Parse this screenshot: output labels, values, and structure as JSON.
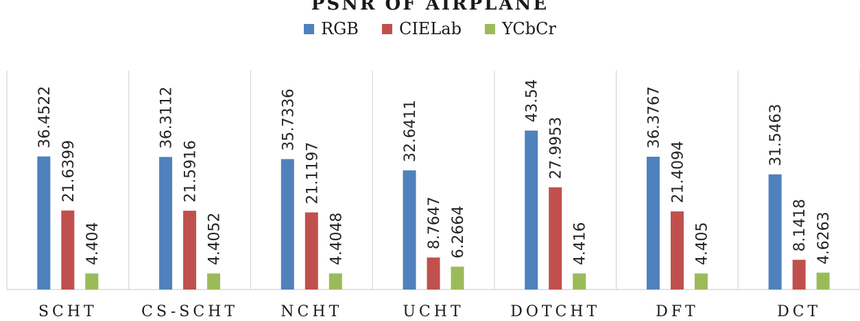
{
  "chart_data": {
    "type": "bar",
    "title": "PSNR OF AIRPLANE",
    "categories": [
      "SCHT",
      "CS-SCHT",
      "NCHT",
      "UCHT",
      "DOTCHT",
      "DFT",
      "DCT"
    ],
    "series": [
      {
        "name": "RGB",
        "color": "#4f81bd",
        "values": [
          36.4522,
          36.3112,
          35.7336,
          32.6411,
          43.54,
          36.3767,
          31.5463
        ],
        "labels": [
          "36.4522",
          "36.3112",
          "35.7336",
          "32.6411",
          "43.54",
          "36.3767",
          "31.5463"
        ]
      },
      {
        "name": "CIELab",
        "color": "#c0504d",
        "values": [
          21.6399,
          21.5916,
          21.1197,
          8.7647,
          27.9953,
          21.4094,
          8.1418
        ],
        "labels": [
          "21.6399",
          "21.5916",
          "21.1197",
          "8.7647",
          "27.9953",
          "21.4094",
          "8.1418"
        ]
      },
      {
        "name": "YCbCr",
        "color": "#9bbb59",
        "values": [
          4.404,
          4.4052,
          4.4048,
          6.2664,
          4.416,
          4.405,
          4.6263
        ],
        "labels": [
          "4.404",
          "4.4052",
          "4.4048",
          "6.2664",
          "4.416",
          "4.405",
          "4.6263"
        ]
      }
    ],
    "xlabel": "",
    "ylabel": "",
    "ylim": [
      0,
      60
    ],
    "grid": false,
    "legend_position": "top"
  }
}
